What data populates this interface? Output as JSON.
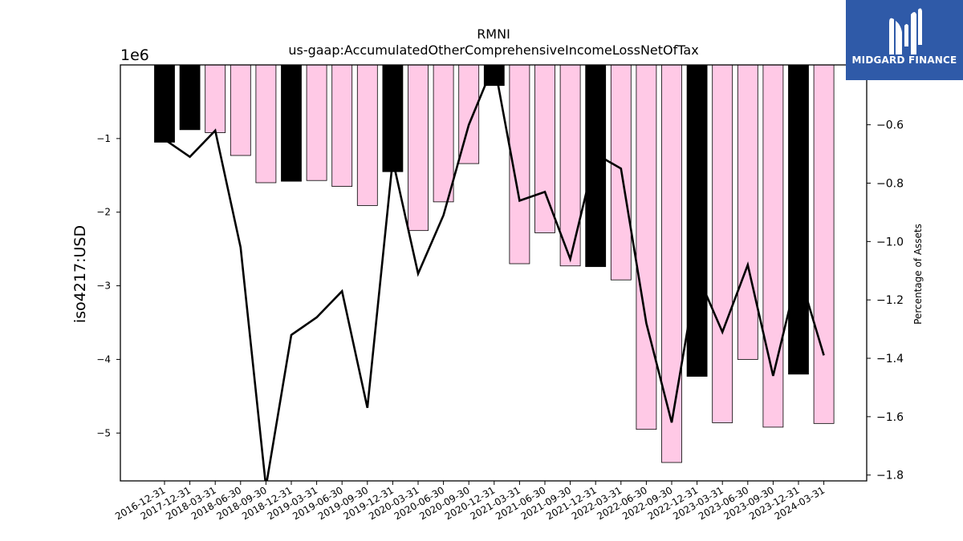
{
  "brand": {
    "name": "MIDGARD FINANCE",
    "logo_icon": "midgard-m-logo-icon",
    "background_color": "#2f5aa8"
  },
  "chart_data": {
    "type": "bar",
    "title": "RMNI",
    "subtitle": "us-gaap:AccumulatedOtherComprehensiveIncomeLossNetOfTax",
    "ylabel": "iso4217:USD",
    "ylabel_right": "Percentage of Assets",
    "y_offset_label": "1e6",
    "ylim": [
      -5.65,
      0
    ],
    "ylim_right": [
      -1.82,
      -0.395
    ],
    "yticks": [
      -1,
      -2,
      -3,
      -4,
      -5
    ],
    "yticks_right": [
      -0.6,
      -0.8,
      -1.0,
      -1.2,
      -1.4,
      -1.6,
      -1.8
    ],
    "ytick_labels": [
      "−1",
      "−2",
      "−3",
      "−4",
      "−5"
    ],
    "ytick_labels_right": [
      "−0.6",
      "−0.8",
      "−1.0",
      "−1.2",
      "−1.4",
      "−1.6",
      "−1.8"
    ],
    "categories": [
      "2016-12-31",
      "2017-12-31",
      "2018-03-31",
      "2018-06-30",
      "2018-09-30",
      "2018-12-31",
      "2019-03-31",
      "2019-06-30",
      "2019-09-30",
      "2019-12-31",
      "2020-03-31",
      "2020-06-30",
      "2020-09-30",
      "2020-12-31",
      "2021-03-31",
      "2021-06-30",
      "2021-09-30",
      "2021-12-31",
      "2022-03-31",
      "2022-06-30",
      "2022-09-30",
      "2022-12-31",
      "2023-03-31",
      "2023-06-30",
      "2023-09-30",
      "2023-12-31",
      "2024-03-31"
    ],
    "series": [
      {
        "axis": "left",
        "kind": "bar",
        "values": [
          -1.05,
          -0.88,
          -0.92,
          -1.23,
          -1.6,
          -1.58,
          -1.57,
          -1.65,
          -1.91,
          -1.45,
          -2.25,
          -1.86,
          -1.34,
          -0.28,
          -2.7,
          -2.28,
          -2.73,
          -2.74,
          -2.92,
          -4.95,
          -5.4,
          -4.23,
          -4.86,
          -4.0,
          -4.92,
          -4.2,
          -4.87
        ],
        "colors": [
          "#000000",
          "#000000",
          "#ffc9e6",
          "#ffc9e6",
          "#ffc9e6",
          "#000000",
          "#ffc9e6",
          "#ffc9e6",
          "#ffc9e6",
          "#000000",
          "#ffc9e6",
          "#ffc9e6",
          "#ffc9e6",
          "#000000",
          "#ffc9e6",
          "#ffc9e6",
          "#ffc9e6",
          "#000000",
          "#ffc9e6",
          "#ffc9e6",
          "#ffc9e6",
          "#000000",
          "#ffc9e6",
          "#ffc9e6",
          "#ffc9e6",
          "#000000",
          "#ffc9e6"
        ]
      },
      {
        "axis": "right",
        "kind": "line",
        "color": "#000000",
        "values": [
          -0.65,
          -0.71,
          -0.62,
          -1.02,
          -1.84,
          -1.32,
          -1.26,
          -1.17,
          -1.57,
          -0.72,
          -1.11,
          -0.91,
          -0.6,
          -0.39,
          -0.86,
          -0.83,
          -1.06,
          -0.7,
          -0.75,
          -1.28,
          -1.62,
          -1.11,
          -1.31,
          -1.08,
          -1.46,
          -1.1,
          -1.39
        ]
      }
    ],
    "grid": false,
    "legend": "none"
  }
}
